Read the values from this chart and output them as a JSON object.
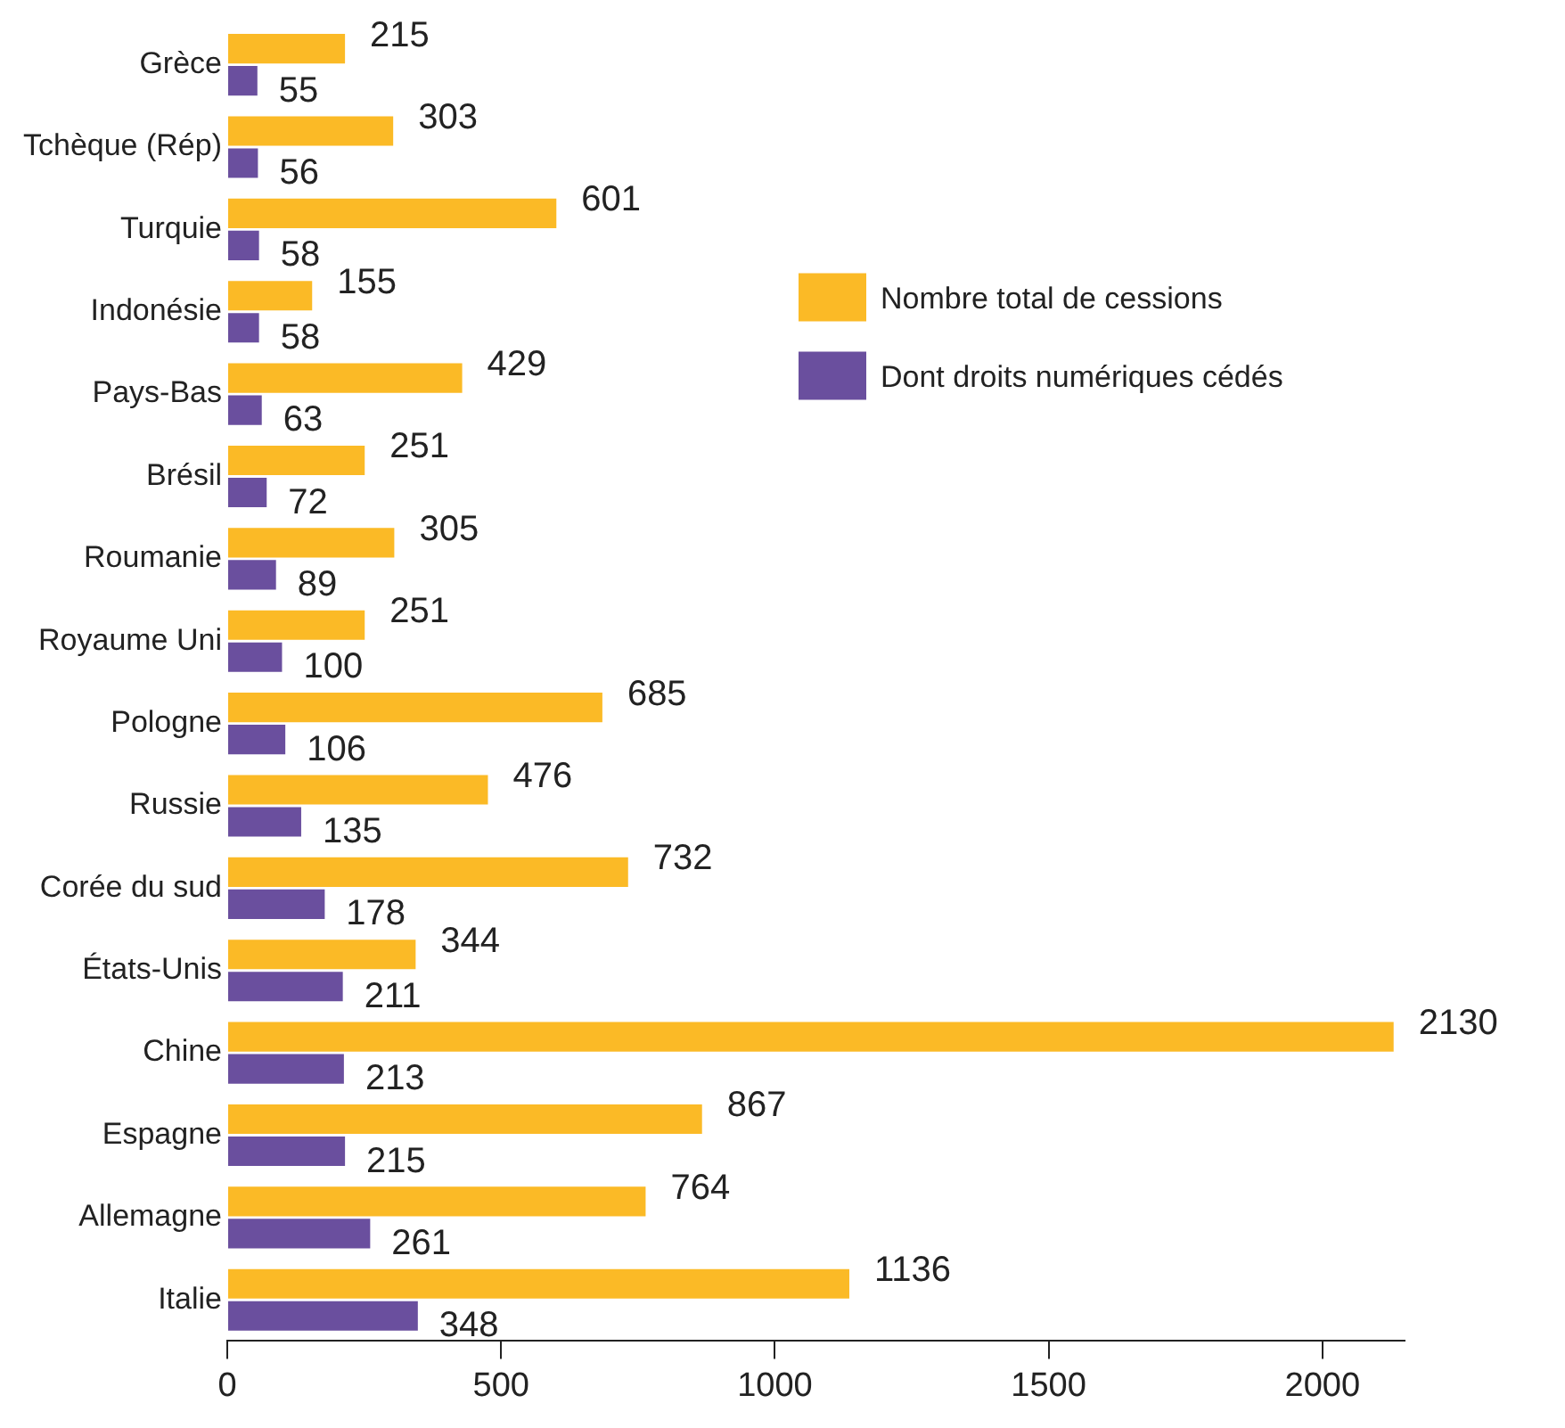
{
  "chart_data": {
    "type": "bar",
    "orientation": "horizontal",
    "categories": [
      "Grèce",
      "Tchèque (Rép)",
      "Turquie",
      "Indonésie",
      "Pays-Bas",
      "Brésil",
      "Roumanie",
      "Royaume Uni",
      "Pologne",
      "Russie",
      "Corée du sud",
      "États-Unis",
      "Chine",
      "Espagne",
      "Allemagne",
      "Italie"
    ],
    "series": [
      {
        "name": "Nombre total de cessions",
        "color": "#fbba26",
        "values": [
          215,
          303,
          601,
          155,
          429,
          251,
          305,
          251,
          685,
          476,
          732,
          344,
          2130,
          867,
          764,
          1136
        ]
      },
      {
        "name": "Dont droits numériques cédés",
        "color": "#6a4f9e",
        "values": [
          55,
          56,
          58,
          58,
          63,
          72,
          89,
          100,
          106,
          135,
          178,
          211,
          213,
          215,
          261,
          348
        ]
      }
    ],
    "xlim": [
      0,
      2150
    ],
    "xticks": [
      0,
      500,
      1000,
      1500,
      2000
    ],
    "grid": false,
    "legend": "top right",
    "data_labels": true
  }
}
